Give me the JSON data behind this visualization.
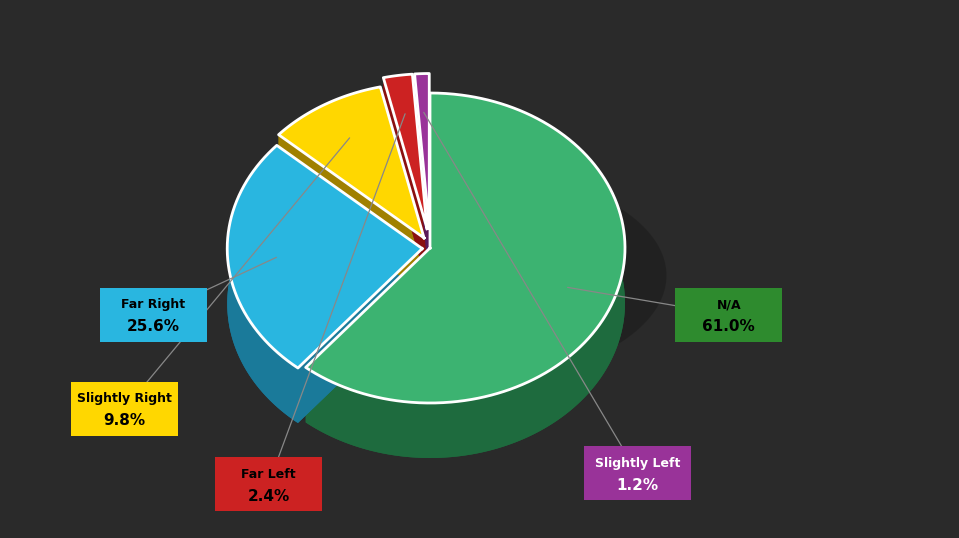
{
  "labels": [
    "N/A",
    "Far Right",
    "Slightly Right",
    "Far Left",
    "Slightly Left"
  ],
  "values": [
    61.0,
    25.6,
    9.8,
    2.4,
    1.2
  ],
  "slice_colors": [
    "#3cb371",
    "#29b6e0",
    "#ffd700",
    "#cc2222",
    "#993399"
  ],
  "slice_dark_colors": [
    "#1e6b3e",
    "#1a7a9a",
    "#a08000",
    "#8b1010",
    "#5a1a5a"
  ],
  "background_color": "#2a2a2a",
  "startangle": 90,
  "explode": [
    0.0,
    0.04,
    0.06,
    0.1,
    0.1
  ],
  "annotation_boxes": [
    {
      "label": "N/A",
      "pct": "61.0%",
      "bx": 0.76,
      "by": 0.415,
      "bg": "#2e8b2e",
      "lc": "#000000",
      "vc": "#000000"
    },
    {
      "label": "Far Right",
      "pct": "25.6%",
      "bx": 0.16,
      "by": 0.415,
      "bg": "#29b6e0",
      "lc": "#000000",
      "vc": "#000000"
    },
    {
      "label": "Slightly Right",
      "pct": "9.8%",
      "bx": 0.13,
      "by": 0.24,
      "bg": "#ffd700",
      "lc": "#000000",
      "vc": "#000000"
    },
    {
      "label": "Far Left",
      "pct": "2.4%",
      "bx": 0.28,
      "by": 0.1,
      "bg": "#cc2222",
      "lc": "#000000",
      "vc": "#000000"
    },
    {
      "label": "Slightly Left",
      "pct": "1.2%",
      "bx": 0.665,
      "by": 0.12,
      "bg": "#993399",
      "lc": "#ffffff",
      "vc": "#ffffff"
    }
  ]
}
